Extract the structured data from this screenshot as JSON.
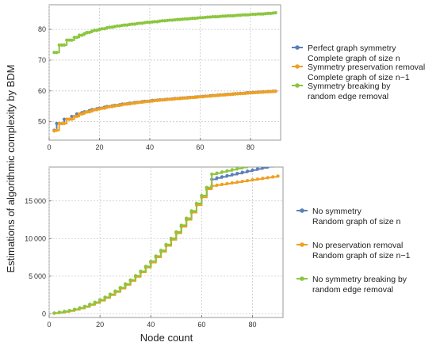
{
  "figure": {
    "ylabel": "Estimations of algorithmic complexity by BDM",
    "xlabel": "Node count"
  },
  "chart_data": [
    {
      "type": "line",
      "title": "",
      "xlim": [
        0,
        92
      ],
      "ylim": [
        44,
        88
      ],
      "xticks": [
        0,
        20,
        40,
        60,
        80
      ],
      "yticks": [
        50,
        60,
        70,
        80
      ],
      "grid": true,
      "legend_position": "right",
      "x": [
        2,
        3,
        4,
        5,
        6,
        7,
        8,
        9,
        10,
        11,
        12,
        13,
        14,
        15,
        16,
        17,
        18,
        19,
        20,
        21,
        22,
        23,
        24,
        25,
        26,
        27,
        28,
        29,
        30,
        31,
        32,
        33,
        34,
        35,
        36,
        37,
        38,
        39,
        40,
        41,
        42,
        43,
        44,
        45,
        46,
        47,
        48,
        49,
        50,
        51,
        52,
        53,
        54,
        55,
        56,
        57,
        58,
        59,
        60,
        61,
        62,
        63,
        64,
        65,
        66,
        67,
        68,
        69,
        70,
        71,
        72,
        73,
        74,
        75,
        76,
        77,
        78,
        79,
        80,
        81,
        82,
        83,
        84,
        85,
        86,
        87,
        88,
        89,
        90
      ],
      "series": [
        {
          "label_lines": [
            "Perfect graph symmetry",
            "Complete graph of size n"
          ],
          "color": "#5b7fb9",
          "values": [
            47.2,
            49.4,
            49.4,
            49.4,
            50.8,
            50.8,
            50.8,
            51.7,
            51.7,
            52.5,
            52.5,
            52.9,
            53.2,
            53.2,
            53.6,
            53.9,
            53.9,
            54.2,
            54.4,
            54.4,
            54.7,
            54.9,
            54.9,
            55.1,
            55.3,
            55.3,
            55.5,
            55.7,
            55.7,
            55.8,
            56.0,
            56.0,
            56.2,
            56.3,
            56.3,
            56.5,
            56.6,
            56.6,
            56.7,
            56.9,
            56.9,
            57.0,
            57.1,
            57.1,
            57.2,
            57.3,
            57.3,
            57.4,
            57.5,
            57.5,
            57.6,
            57.7,
            57.7,
            57.8,
            57.9,
            57.9,
            58.0,
            58.1,
            58.1,
            58.2,
            58.3,
            58.3,
            58.4,
            58.5,
            58.5,
            58.6,
            58.7,
            58.7,
            58.8,
            58.9,
            58.9,
            59.0,
            59.1,
            59.1,
            59.2,
            59.2,
            59.3,
            59.4,
            59.4,
            59.5,
            59.5,
            59.6,
            59.6,
            59.7,
            59.7,
            59.8,
            59.8,
            59.9,
            59.9
          ]
        },
        {
          "label_lines": [
            "Symmetry preservation removal",
            "Complete graph of size n−1"
          ],
          "color": "#f0a020",
          "values": [
            47.0,
            47.2,
            49.4,
            49.4,
            49.4,
            50.8,
            50.8,
            50.8,
            51.7,
            51.7,
            52.5,
            52.5,
            52.9,
            53.2,
            53.2,
            53.6,
            53.9,
            53.9,
            54.2,
            54.4,
            54.4,
            54.7,
            54.9,
            54.9,
            55.1,
            55.3,
            55.3,
            55.5,
            55.7,
            55.7,
            55.8,
            56.0,
            56.0,
            56.2,
            56.3,
            56.3,
            56.5,
            56.6,
            56.6,
            56.7,
            56.9,
            56.9,
            57.0,
            57.1,
            57.1,
            57.2,
            57.3,
            57.3,
            57.4,
            57.5,
            57.5,
            57.6,
            57.7,
            57.7,
            57.8,
            57.9,
            57.9,
            58.0,
            58.1,
            58.1,
            58.2,
            58.3,
            58.3,
            58.4,
            58.5,
            58.5,
            58.6,
            58.7,
            58.7,
            58.8,
            58.9,
            58.9,
            59.0,
            59.1,
            59.1,
            59.2,
            59.2,
            59.3,
            59.4,
            59.4,
            59.5,
            59.5,
            59.6,
            59.6,
            59.7,
            59.7,
            59.8,
            59.8,
            59.9
          ]
        },
        {
          "label_lines": [
            "Symmetry breaking by",
            "random edge removal"
          ],
          "color": "#8cc63f",
          "values": [
            72.5,
            72.5,
            74.9,
            74.9,
            74.9,
            76.5,
            76.5,
            76.5,
            77.4,
            77.4,
            78.1,
            78.1,
            78.6,
            79.0,
            79.0,
            79.4,
            79.7,
            79.7,
            80.0,
            80.2,
            80.2,
            80.5,
            80.7,
            80.7,
            80.9,
            81.1,
            81.1,
            81.3,
            81.4,
            81.4,
            81.6,
            81.7,
            81.7,
            81.9,
            82.0,
            82.0,
            82.2,
            82.3,
            82.3,
            82.4,
            82.5,
            82.5,
            82.7,
            82.8,
            82.8,
            82.9,
            83.0,
            83.0,
            83.1,
            83.2,
            83.2,
            83.3,
            83.4,
            83.4,
            83.5,
            83.6,
            83.6,
            83.7,
            83.8,
            83.8,
            83.9,
            84.0,
            84.0,
            84.1,
            84.1,
            84.1,
            84.2,
            84.3,
            84.3,
            84.4,
            84.4,
            84.4,
            84.5,
            84.6,
            84.6,
            84.7,
            84.7,
            84.7,
            84.8,
            84.9,
            84.9,
            85.0,
            85.0,
            85.0,
            85.1,
            85.2,
            85.2,
            85.3,
            85.4
          ]
        }
      ]
    },
    {
      "type": "line",
      "title": "",
      "xlim": [
        0,
        92
      ],
      "ylim": [
        -500,
        19500
      ],
      "xticks": [
        0,
        20,
        40,
        60,
        80
      ],
      "yticks": [
        0,
        5000,
        10000,
        15000
      ],
      "grid": true,
      "legend_position": "right",
      "x": [
        2,
        4,
        6,
        8,
        10,
        12,
        14,
        16,
        18,
        20,
        22,
        24,
        26,
        28,
        30,
        32,
        34,
        36,
        38,
        40,
        42,
        44,
        46,
        48,
        50,
        52,
        54,
        56,
        58,
        60,
        62,
        64,
        66,
        68,
        70,
        72,
        74,
        76,
        78,
        80,
        82,
        84,
        86,
        88,
        90
      ],
      "series": [
        {
          "label_lines": [
            "No symmetry",
            "Random graph of size n"
          ],
          "color": "#5b7fb9",
          "values": [
            80,
            180,
            280,
            400,
            560,
            750,
            960,
            1220,
            1500,
            1820,
            2170,
            2560,
            2980,
            3440,
            3930,
            4460,
            5020,
            5620,
            6260,
            6930,
            7640,
            8390,
            9170,
            9990,
            10850,
            11740,
            12670,
            13640,
            14640,
            15680,
            16760,
            17870,
            18050,
            18200,
            18350,
            18500,
            18650,
            18800,
            18950,
            19100,
            19250,
            19400,
            19550,
            19700,
            19850
          ]
        },
        {
          "label_lines": [
            "No preservation removal",
            "Random graph of size n−1"
          ],
          "color": "#f0a020",
          "values": [
            60,
            150,
            250,
            370,
            520,
            700,
            910,
            1160,
            1430,
            1740,
            2090,
            2470,
            2890,
            3340,
            3830,
            4350,
            4900,
            5500,
            6130,
            6800,
            7500,
            8240,
            9020,
            9830,
            10680,
            11560,
            12490,
            13450,
            14440,
            15480,
            16550,
            17000,
            17100,
            17200,
            17300,
            17400,
            17500,
            17600,
            17700,
            17800,
            17900,
            18000,
            18100,
            18200,
            18300
          ]
        },
        {
          "label_lines": [
            "No symmetry breaking by",
            "random edge removal"
          ],
          "color": "#8cc63f",
          "values": [
            100,
            200,
            310,
            430,
            590,
            780,
            990,
            1250,
            1530,
            1850,
            2200,
            2590,
            3010,
            3470,
            3960,
            4490,
            5050,
            5650,
            6290,
            6960,
            7670,
            8420,
            9200,
            10020,
            10880,
            11770,
            12700,
            13670,
            14670,
            15710,
            16790,
            18550,
            18700,
            18850,
            19000,
            19150,
            19300,
            19450,
            19600,
            19750,
            19900,
            20050,
            20200,
            20350,
            20500
          ]
        }
      ]
    }
  ]
}
